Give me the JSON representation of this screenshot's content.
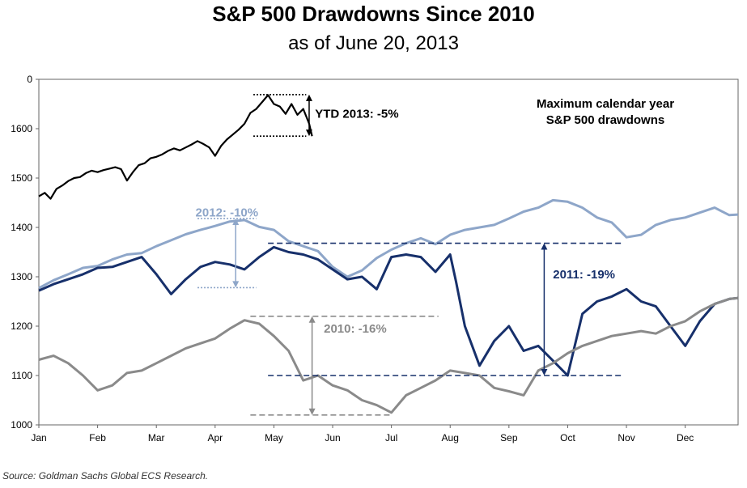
{
  "title": "S&P 500 Drawdowns Since 2010",
  "subtitle": "as of June 20, 2013",
  "source": "Source: Goldman Sachs Global ECS Research.",
  "chart_data": {
    "type": "line",
    "x_ticks": [
      "Jan",
      "Feb",
      "Mar",
      "Apr",
      "May",
      "Jun",
      "Jul",
      "Aug",
      "Sep",
      "Oct",
      "Nov",
      "Dec"
    ],
    "y_ticks": [
      "0",
      "1600",
      "1500",
      "1400",
      "1300",
      "1200",
      "1100",
      "1000"
    ],
    "ylim": [
      1000,
      1700
    ],
    "grid": false,
    "legend_note": "Maximum calendar year\nS&P 500 drawdowns",
    "annotations": [
      {
        "text": "YTD 2013: -5%",
        "color": "#000000"
      },
      {
        "text": "2012: -10%",
        "color": "#8ea6c9"
      },
      {
        "text": "2011: -19%",
        "color": "#17306b"
      },
      {
        "text": "2010: -16%",
        "color": "#8a8a8a"
      }
    ],
    "series": [
      {
        "year": "2013",
        "color": "#000000",
        "x": [
          0,
          0.1,
          0.2,
          0.3,
          0.4,
          0.5,
          0.6,
          0.7,
          0.8,
          0.9,
          1.0,
          1.1,
          1.2,
          1.3,
          1.4,
          1.5,
          1.6,
          1.7,
          1.8,
          1.9,
          2.0,
          2.1,
          2.2,
          2.3,
          2.4,
          2.5,
          2.6,
          2.7,
          2.8,
          2.9,
          3.0,
          3.1,
          3.2,
          3.3,
          3.4,
          3.5,
          3.6,
          3.7,
          3.8,
          3.9,
          4.0,
          4.1,
          4.2,
          4.3,
          4.4,
          4.5,
          4.6,
          4.65
        ],
        "y": [
          1463,
          1470,
          1458,
          1478,
          1485,
          1494,
          1500,
          1502,
          1510,
          1515,
          1512,
          1516,
          1519,
          1522,
          1518,
          1495,
          1512,
          1526,
          1530,
          1540,
          1543,
          1548,
          1555,
          1560,
          1556,
          1562,
          1568,
          1575,
          1569,
          1562,
          1545,
          1565,
          1578,
          1588,
          1598,
          1610,
          1632,
          1640,
          1654,
          1668,
          1650,
          1645,
          1630,
          1650,
          1628,
          1640,
          1610,
          1585
        ]
      },
      {
        "year": "2012",
        "color": "#8ea6c9",
        "x": [
          0,
          0.25,
          0.5,
          0.75,
          1.0,
          1.25,
          1.5,
          1.75,
          2.0,
          2.25,
          2.5,
          2.75,
          3.0,
          3.25,
          3.5,
          3.75,
          4.0,
          4.25,
          4.5,
          4.75,
          5.0,
          5.25,
          5.5,
          5.75,
          6.0,
          6.25,
          6.5,
          6.75,
          7.0,
          7.25,
          7.5,
          7.75,
          8.0,
          8.25,
          8.5,
          8.75,
          9.0,
          9.25,
          9.5,
          9.75,
          10.0,
          10.25,
          10.5,
          10.75,
          11.0,
          11.25,
          11.5,
          11.75,
          11.9
        ],
        "y": [
          1277,
          1293,
          1305,
          1318,
          1322,
          1335,
          1345,
          1348,
          1362,
          1374,
          1386,
          1395,
          1403,
          1412,
          1415,
          1401,
          1395,
          1372,
          1362,
          1352,
          1320,
          1300,
          1313,
          1338,
          1355,
          1368,
          1378,
          1366,
          1385,
          1395,
          1400,
          1405,
          1418,
          1432,
          1440,
          1455,
          1452,
          1440,
          1420,
          1410,
          1380,
          1385,
          1405,
          1415,
          1420,
          1430,
          1440,
          1425,
          1426
        ]
      },
      {
        "year": "2011",
        "color": "#17306b",
        "x": [
          0,
          0.25,
          0.5,
          0.75,
          1.0,
          1.25,
          1.5,
          1.75,
          2.0,
          2.25,
          2.5,
          2.75,
          3.0,
          3.25,
          3.5,
          3.75,
          4.0,
          4.25,
          4.5,
          4.75,
          5.0,
          5.25,
          5.5,
          5.75,
          6.0,
          6.25,
          6.5,
          6.75,
          7.0,
          7.1,
          7.25,
          7.5,
          7.75,
          8.0,
          8.25,
          8.5,
          8.75,
          9.0,
          9.25,
          9.5,
          9.75,
          10.0,
          10.25,
          10.5,
          10.75,
          11.0,
          11.25,
          11.5,
          11.75,
          11.9
        ],
        "y": [
          1272,
          1285,
          1295,
          1305,
          1318,
          1320,
          1330,
          1340,
          1305,
          1265,
          1295,
          1320,
          1330,
          1325,
          1315,
          1340,
          1360,
          1350,
          1345,
          1335,
          1315,
          1295,
          1300,
          1275,
          1340,
          1345,
          1340,
          1310,
          1345,
          1290,
          1200,
          1120,
          1170,
          1200,
          1150,
          1160,
          1130,
          1100,
          1225,
          1250,
          1260,
          1275,
          1250,
          1240,
          1200,
          1160,
          1210,
          1245,
          1255,
          1257
        ]
      },
      {
        "year": "2010",
        "color": "#8a8a8a",
        "x": [
          0,
          0.25,
          0.5,
          0.75,
          1.0,
          1.25,
          1.5,
          1.75,
          2.0,
          2.25,
          2.5,
          2.75,
          3.0,
          3.25,
          3.5,
          3.75,
          4.0,
          4.25,
          4.5,
          4.75,
          5.0,
          5.25,
          5.5,
          5.75,
          6.0,
          6.25,
          6.5,
          6.75,
          7.0,
          7.25,
          7.5,
          7.75,
          8.0,
          8.25,
          8.5,
          8.75,
          9.0,
          9.25,
          9.5,
          9.75,
          10.0,
          10.25,
          10.5,
          10.75,
          11.0,
          11.25,
          11.5,
          11.75,
          11.9
        ],
        "y": [
          1132,
          1140,
          1125,
          1100,
          1070,
          1080,
          1105,
          1110,
          1125,
          1140,
          1155,
          1165,
          1175,
          1195,
          1212,
          1205,
          1180,
          1150,
          1090,
          1100,
          1080,
          1070,
          1050,
          1040,
          1025,
          1060,
          1075,
          1090,
          1110,
          1105,
          1100,
          1075,
          1068,
          1060,
          1110,
          1125,
          1145,
          1160,
          1170,
          1180,
          1185,
          1190,
          1185,
          1200,
          1210,
          1230,
          1245,
          1255,
          1257
        ]
      }
    ]
  }
}
